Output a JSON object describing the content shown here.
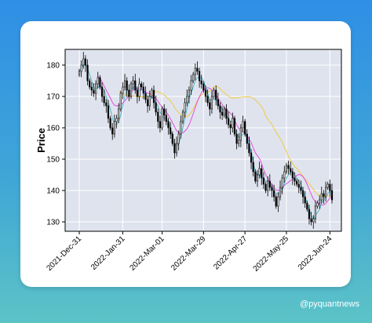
{
  "watermark": "@pyquantnews",
  "chart_data": {
    "type": "candlestick",
    "ylabel": "Price",
    "ylim": [
      127,
      185
    ],
    "yticks": [
      130,
      140,
      150,
      160,
      170,
      180
    ],
    "xticks": [
      "2021-Dec-31",
      "2022-Jan-31",
      "2022-Mar-01",
      "2022-Mar-29",
      "2022-Apr-27",
      "2022-May-25",
      "2022-Jun-24"
    ],
    "xtick_index": [
      0,
      21,
      40,
      60,
      80,
      100,
      121
    ],
    "grid": true,
    "colors": {
      "background": "#dfe3ee",
      "grid": "#ffffff",
      "candle": "#000000",
      "ma_short": "#41b6c4",
      "ma_mid": "#e040e0",
      "ma_long": "#f0c830"
    },
    "close": [
      178,
      180,
      182,
      180,
      175,
      173,
      172,
      171,
      174,
      176,
      173,
      170,
      168,
      167,
      163,
      160,
      158,
      162,
      163,
      166,
      171,
      173,
      175,
      172,
      170,
      174,
      175,
      172,
      170,
      174,
      173,
      171,
      169,
      167,
      170,
      172,
      168,
      165,
      162,
      160,
      166,
      164,
      162,
      160,
      158,
      155,
      152,
      155,
      158,
      162,
      165,
      168,
      170,
      172,
      175,
      177,
      179,
      178,
      175,
      174,
      172,
      170,
      168,
      166,
      170,
      172,
      169,
      167,
      165,
      164,
      166,
      163,
      161,
      160,
      163,
      158,
      155,
      156,
      160,
      162,
      158,
      155,
      152,
      149,
      146,
      143,
      145,
      147,
      144,
      142,
      140,
      143,
      141,
      140,
      138,
      135,
      138,
      141,
      144,
      146,
      148,
      147,
      146,
      144,
      143,
      142,
      141,
      140,
      138,
      136,
      134,
      131,
      130,
      131,
      135,
      136,
      137,
      139,
      138,
      141,
      142,
      140,
      137
    ],
    "ma_short": [
      178,
      179,
      180,
      180,
      179,
      177,
      175,
      173,
      172,
      173,
      173,
      173,
      172,
      170,
      168,
      166,
      163,
      161,
      161,
      162,
      164,
      167,
      170,
      172,
      172,
      172,
      173,
      173,
      172,
      172,
      172,
      172,
      171,
      170,
      170,
      170,
      169,
      168,
      167,
      165,
      164,
      163,
      163,
      162,
      160,
      157,
      155,
      154,
      155,
      157,
      160,
      163,
      166,
      169,
      171,
      173,
      175,
      176,
      176,
      176,
      175,
      173,
      171,
      169,
      169,
      169,
      169,
      168,
      167,
      166,
      165,
      164,
      163,
      162,
      162,
      160,
      158,
      157,
      157,
      158,
      158,
      157,
      155,
      152,
      149,
      146,
      145,
      145,
      144,
      144,
      143,
      143,
      142,
      141,
      140,
      139,
      139,
      139,
      140,
      142,
      144,
      145,
      146,
      146,
      145,
      144,
      143,
      142,
      140,
      138,
      136,
      134,
      132,
      131,
      132,
      133,
      134,
      136,
      137,
      138,
      139,
      140,
      139
    ],
    "ma_mid": [
      null,
      null,
      null,
      null,
      null,
      null,
      null,
      null,
      null,
      176.5,
      175.7,
      174.7,
      173.3,
      172.0,
      170.8,
      169.5,
      168.1,
      167.2,
      167.0,
      167.0,
      167.4,
      167.9,
      168.6,
      169.4,
      170.1,
      171.2,
      172.0,
      172.5,
      172.7,
      172.4,
      172.2,
      172.0,
      171.5,
      171.0,
      170.9,
      170.6,
      170.0,
      169.3,
      168.5,
      167.4,
      166.7,
      166.0,
      165.0,
      164.0,
      162.9,
      161.6,
      160.3,
      159.1,
      158.4,
      158.2,
      158.4,
      158.9,
      159.7,
      160.9,
      162.6,
      164.5,
      166.5,
      168.3,
      169.9,
      171.2,
      172.1,
      172.6,
      172.8,
      172.6,
      172.1,
      171.5,
      170.5,
      169.4,
      168.4,
      167.4,
      166.6,
      165.9,
      165.2,
      164.6,
      163.9,
      162.5,
      160.9,
      159.8,
      159.3,
      158.8,
      158.1,
      157.4,
      156.4,
      155.3,
      153.6,
      152.1,
      151.1,
      150.2,
      148.6,
      146.6,
      145.1,
      143.9,
      142.8,
      141.9,
      140.9,
      140.1,
      140.0,
      140.2,
      140.8,
      141.6,
      142.2,
      142.6,
      143.2,
      143.6,
      144.1,
      144.8,
      145.1,
      145.0,
      144.4,
      143.4,
      142.0,
      140.4,
      138.8,
      137.3,
      136.5,
      135.9,
      135.5,
      135.4,
      135.4,
      135.9,
      136.7,
      137.6,
      138.3
    ],
    "ma_long": [
      null,
      null,
      null,
      null,
      null,
      null,
      null,
      null,
      null,
      null,
      null,
      null,
      null,
      null,
      null,
      null,
      null,
      null,
      null,
      171.6,
      171.3,
      170.9,
      170.6,
      170.3,
      170.0,
      170.0,
      170.1,
      170.2,
      170.0,
      169.9,
      169.9,
      169.9,
      169.9,
      169.9,
      170.3,
      170.9,
      171.5,
      171.6,
      171.5,
      171.2,
      170.9,
      170.5,
      169.8,
      169.2,
      168.6,
      167.7,
      166.5,
      165.6,
      164.9,
      164.0,
      163.7,
      163.5,
      163.6,
      164.1,
      164.8,
      166.0,
      167.2,
      168.5,
      169.8,
      170.5,
      170.8,
      171.1,
      171.4,
      171.7,
      172.3,
      173.1,
      173.4,
      173.0,
      172.4,
      171.7,
      171.2,
      170.6,
      170.2,
      169.6,
      169.5,
      169.5,
      169.5,
      169.6,
      169.8,
      169.8,
      169.9,
      169.9,
      169.9,
      169.8,
      169.4,
      168.9,
      168.2,
      167.5,
      166.8,
      165.6,
      163.8,
      162.7,
      161.9,
      161.0,
      159.8,
      158.6,
      157.6,
      156.6,
      155.2,
      153.9,
      152.5,
      150.8,
      149.6,
      148.5,
      147.6,
      147.1,
      146.2,
      145.4,
      144.6,
      143.6,
      142.9,
      142.0,
      141.4,
      140.4,
      139.4,
      138.7,
      138.5,
      138.4,
      138.5,
      138.3,
      138.2,
      138.1,
      137.9
    ]
  }
}
